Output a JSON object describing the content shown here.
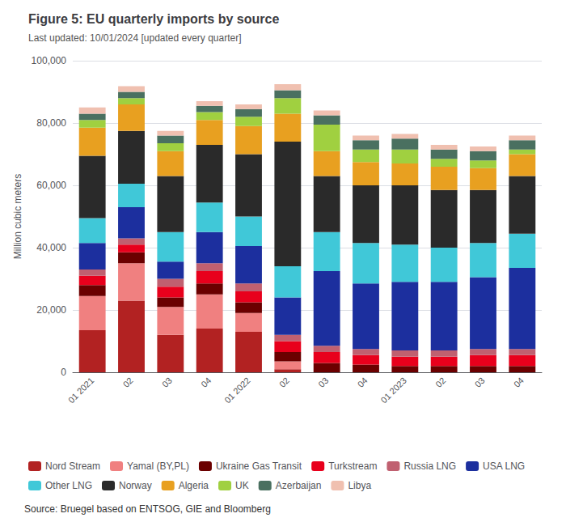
{
  "chart_data": {
    "type": "bar",
    "title": "Figure 5: EU quarterly imports by source",
    "subtitle": "Last updated: 10/01/2024 [updated every quarter]",
    "source": "Source: Bruegel based on ENTSOG, GIE and Bloomberg",
    "ylabel": "Million cubic meters",
    "categories": [
      "01 2021",
      "02",
      "03",
      "04",
      "01 2022",
      "02",
      "03",
      "04",
      "01 2023",
      "02",
      "03",
      "04"
    ],
    "series": [
      {
        "name": "Nord Stream",
        "color": "#b22222",
        "values": [
          13500,
          23000,
          12000,
          14000,
          13000,
          1000,
          0,
          0,
          0,
          0,
          0,
          0
        ]
      },
      {
        "name": "Yamal (BY,PL)",
        "color": "#f08080",
        "values": [
          11000,
          12000,
          9000,
          11000,
          6000,
          2500,
          0,
          0,
          0,
          0,
          0,
          0
        ]
      },
      {
        "name": "Ukraine Gas Transit",
        "color": "#6b0000",
        "values": [
          3500,
          3500,
          3000,
          3500,
          3500,
          3000,
          3000,
          2500,
          2000,
          2000,
          2000,
          2000
        ]
      },
      {
        "name": "Turkstream",
        "color": "#e8001c",
        "values": [
          3000,
          2500,
          3500,
          4000,
          3500,
          3500,
          3500,
          3000,
          3000,
          3000,
          3500,
          3500
        ]
      },
      {
        "name": "Russia LNG",
        "color": "#c06070",
        "values": [
          2000,
          2000,
          2500,
          2500,
          2500,
          2000,
          2000,
          2000,
          2000,
          2000,
          2000,
          2000
        ]
      },
      {
        "name": "USA LNG",
        "color": "#1c2f9e",
        "values": [
          8500,
          10000,
          5500,
          10000,
          12000,
          12000,
          24000,
          21000,
          22000,
          22000,
          23000,
          26000
        ]
      },
      {
        "name": "Other LNG",
        "color": "#40c8d8",
        "values": [
          8000,
          7500,
          9500,
          9500,
          9500,
          10000,
          12500,
          13000,
          12000,
          11000,
          11000,
          11000
        ]
      },
      {
        "name": "Norway",
        "color": "#2a2a2a",
        "values": [
          20000,
          17000,
          18000,
          18500,
          20000,
          40000,
          18000,
          18500,
          19000,
          18500,
          17000,
          18500
        ]
      },
      {
        "name": "Algeria",
        "color": "#e8a020",
        "values": [
          9000,
          8500,
          8000,
          8000,
          9000,
          9000,
          8000,
          7500,
          7000,
          7500,
          7000,
          7000
        ]
      },
      {
        "name": "UK",
        "color": "#a0d040",
        "values": [
          2500,
          2000,
          2500,
          2500,
          3000,
          5000,
          8500,
          4000,
          4500,
          2500,
          2500,
          1500
        ]
      },
      {
        "name": "Azerbaijan",
        "color": "#4a7060",
        "values": [
          2000,
          2000,
          2500,
          2000,
          2500,
          2500,
          3000,
          3000,
          3500,
          3000,
          3000,
          3000
        ]
      },
      {
        "name": "Libya",
        "color": "#f0c0b0",
        "values": [
          2000,
          1800,
          1500,
          1500,
          1500,
          2000,
          1500,
          1500,
          1500,
          1500,
          1500,
          1500
        ]
      }
    ],
    "stacked": true,
    "ylim": [
      0,
      100000
    ],
    "yticks": [
      0,
      {
        "value": 20000,
        "label": "20,000"
      },
      {
        "value": 40000,
        "label": "40,000"
      },
      {
        "value": 60000,
        "label": "60,000"
      },
      {
        "value": 80000,
        "label": "80,000"
      },
      {
        "value": 100000,
        "label": "100,000"
      }
    ],
    "grid": true,
    "legend": "bottom"
  }
}
